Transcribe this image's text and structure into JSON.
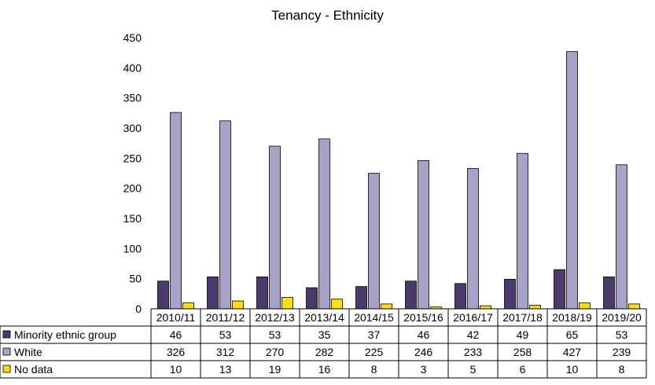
{
  "chart_data": {
    "type": "bar",
    "title": "Tenancy - Ethnicity",
    "categories": [
      "2010/11",
      "2011/12",
      "2012/13",
      "2013/14",
      "2014/15",
      "2015/16",
      "2016/17",
      "2017/18",
      "2018/19",
      "2019/20"
    ],
    "series": [
      {
        "name": "Minority ethnic group",
        "color": "#4b3a6e",
        "values": [
          46,
          53,
          53,
          35,
          37,
          46,
          42,
          49,
          65,
          53
        ]
      },
      {
        "name": "White",
        "color": "#a8a3c6",
        "values": [
          326,
          312,
          270,
          282,
          225,
          246,
          233,
          258,
          427,
          239
        ]
      },
      {
        "name": "No data",
        "color": "#ffde00",
        "values": [
          10,
          13,
          19,
          16,
          8,
          3,
          5,
          6,
          10,
          8
        ]
      }
    ],
    "ylim": [
      0,
      450
    ],
    "yticks": [
      0,
      50,
      100,
      150,
      200,
      250,
      300,
      350,
      400,
      450
    ],
    "data_table": true,
    "grid": false
  }
}
